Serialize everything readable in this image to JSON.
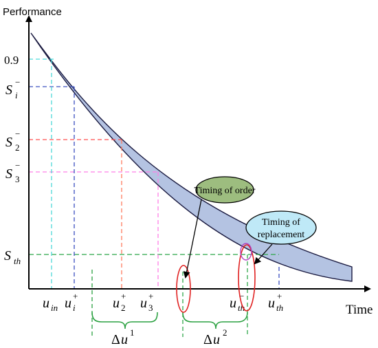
{
  "axes": {
    "y_title": "Performance",
    "x_title": "Time"
  },
  "y_labels": {
    "v09": "0.9",
    "si_base": "S",
    "si_sub": "i",
    "si_sup": "−",
    "s2_base": "S",
    "s2_sub": "2",
    "s2_sup": "−",
    "s3_base": "S",
    "s3_sub": "3",
    "s3_sup": "−",
    "sth_base": "S",
    "sth_sub": "th"
  },
  "x_labels": {
    "uin_base": "u",
    "uin_sub": "in",
    "ui_base": "u",
    "ui_sub": "i",
    "ui_sup": "+",
    "u2_base": "u",
    "u2_sub": "2",
    "u2_sup": "+",
    "u3_base": "u",
    "u3_sub": "3",
    "u3_sup": "+",
    "uth_minus_base": "u",
    "uth_minus_sub": "th",
    "uth_minus_sup": "−",
    "uth_plus_base": "u",
    "uth_plus_sub": "th",
    "uth_plus_sup": "+"
  },
  "intervals": {
    "du1_delta": "Δ",
    "du1_u": "u",
    "du1_sup": "1",
    "du2_delta": "Δ",
    "du2_u": "u",
    "du2_sup": "2"
  },
  "callouts": {
    "order": "Timing of order",
    "replacement_line1": "Timing of",
    "replacement_line2": "replacement"
  },
  "colors": {
    "band_fill": "#b4c3e2",
    "band_stroke": "#1a1a40",
    "order_bubble": "#9dbd7f",
    "replacement_bubble": "#bfe9f7",
    "guide_09": "#4dd9d9",
    "guide_si": "#3a4fc0",
    "guide_s2": "#ff4d4d",
    "guide_s3": "#ff7fe6",
    "guide_sth": "#2fa84a",
    "ellipse_red": "#e02020",
    "ellipse_purple": "#b040c0",
    "bracket_green": "#2aa040"
  }
}
